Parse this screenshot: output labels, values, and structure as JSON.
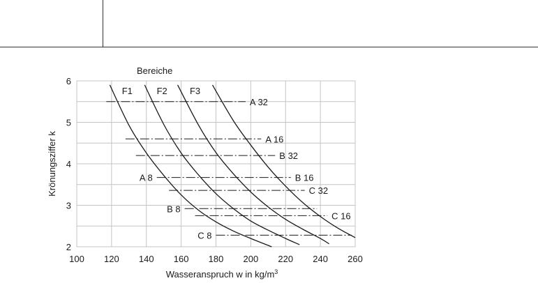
{
  "chart_data": {
    "type": "line",
    "xlabel": "Wasseranspruch w in kg/m",
    "xlabel_sup": "3",
    "ylabel": "Krönungsziffer k",
    "legend_title": "Bereiche",
    "xlim": [
      100,
      260
    ],
    "ylim": [
      2,
      6
    ],
    "x_ticks": [
      100,
      120,
      140,
      160,
      180,
      200,
      220,
      240,
      260
    ],
    "y_ticks": [
      2,
      3,
      4,
      5,
      6
    ],
    "grid": true,
    "curves": [
      {
        "name": "F1",
        "points": [
          [
            119,
            5.9
          ],
          [
            130,
            4.93
          ],
          [
            140,
            4.26
          ],
          [
            150,
            3.72
          ],
          [
            160,
            3.25
          ],
          [
            170,
            2.88
          ],
          [
            180,
            2.6
          ],
          [
            190,
            2.38
          ],
          [
            200,
            2.2
          ],
          [
            212,
            2.0
          ]
        ]
      },
      {
        "name": "F2",
        "points": [
          [
            139,
            5.9
          ],
          [
            150,
            4.95
          ],
          [
            160,
            4.26
          ],
          [
            170,
            3.73
          ],
          [
            180,
            3.28
          ],
          [
            190,
            2.92
          ],
          [
            200,
            2.62
          ],
          [
            210,
            2.4
          ],
          [
            220,
            2.2
          ],
          [
            228,
            2.05
          ]
        ]
      },
      {
        "name": "F3",
        "points": [
          [
            158,
            5.9
          ],
          [
            170,
            4.93
          ],
          [
            180,
            4.27
          ],
          [
            190,
            3.76
          ],
          [
            200,
            3.32
          ],
          [
            210,
            2.96
          ],
          [
            220,
            2.66
          ],
          [
            230,
            2.42
          ],
          [
            240,
            2.2
          ],
          [
            245,
            2.07
          ]
        ]
      },
      {
        "name": "",
        "points": [
          [
            178,
            5.9
          ],
          [
            190,
            5.04
          ],
          [
            200,
            4.45
          ],
          [
            210,
            3.92
          ],
          [
            220,
            3.46
          ],
          [
            230,
            3.06
          ],
          [
            240,
            2.73
          ],
          [
            250,
            2.45
          ],
          [
            260,
            2.22
          ]
        ]
      }
    ],
    "grading_lines": [
      {
        "label": "A 32",
        "k": 5.5,
        "x_start": 117,
        "x_end": 197,
        "label_side": "right"
      },
      {
        "label": "A 16",
        "k": 4.6,
        "x_start": 128,
        "x_end": 206,
        "label_side": "right"
      },
      {
        "label": "B 32",
        "k": 4.2,
        "x_start": 134,
        "x_end": 214,
        "label_side": "right"
      },
      {
        "label": "A 8",
        "k": 3.67,
        "x_start": 146,
        "x_end": 223,
        "label_side": "left"
      },
      {
        "label": "B 16",
        "k": 3.67,
        "x_start": 146,
        "x_end": 223,
        "label_side": "right"
      },
      {
        "label": "C 32",
        "k": 3.36,
        "x_start": 153,
        "x_end": 231,
        "label_side": "right"
      },
      {
        "label": "B 8",
        "k": 2.92,
        "x_start": 162,
        "x_end": 238,
        "label_side": "left"
      },
      {
        "label": "C 16",
        "k": 2.75,
        "x_start": 168,
        "x_end": 244,
        "label_side": "right"
      },
      {
        "label": "C 8",
        "k": 2.28,
        "x_start": 180,
        "x_end": 258,
        "label_side": "left"
      }
    ]
  }
}
